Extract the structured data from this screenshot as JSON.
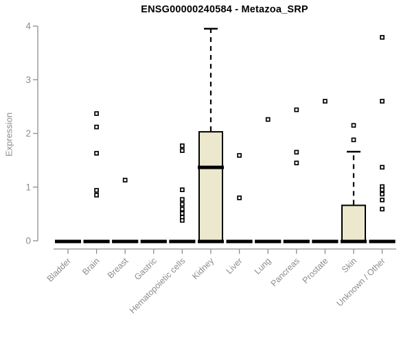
{
  "chart_data": {
    "type": "boxplot",
    "title": "ENSG00000240584 - Metazoa_SRP",
    "ylabel": "Expression",
    "xlabel": "",
    "ylim": [
      0,
      4
    ],
    "yticks": [
      0,
      1,
      2,
      3,
      4
    ],
    "grid": false,
    "legend": "none",
    "colors": {
      "box_fill": "#ece8cd",
      "box_border": "#000000",
      "median": "#000000",
      "whisker": "#000000",
      "outlier_fill": "#ffffff",
      "outlier_border": "#000000",
      "axis": "#8c8c8c",
      "tick_label": "#8c8c8c",
      "title": "#000000"
    },
    "categories": [
      "Bladder",
      "Brain",
      "Breast",
      "Gastric",
      "Hematopoietic cells",
      "Kidney",
      "Liver",
      "Lung",
      "Pancreas",
      "Prostate",
      "Skin",
      "Unknown / Other"
    ],
    "series": [
      {
        "category": "Bladder",
        "min": 0,
        "q1": 0,
        "median": 0,
        "q3": 0,
        "max": 0,
        "outliers": []
      },
      {
        "category": "Brain",
        "min": 0,
        "q1": 0,
        "median": 0,
        "q3": 0,
        "max": 0,
        "outliers": [
          2.37,
          2.12,
          1.63,
          0.94,
          0.85
        ]
      },
      {
        "category": "Breast",
        "min": 0,
        "q1": 0,
        "median": 0,
        "q3": 0,
        "max": 0,
        "outliers": [
          1.13
        ]
      },
      {
        "category": "Gastric",
        "min": 0,
        "q1": 0,
        "median": 0,
        "q3": 0,
        "max": 0,
        "outliers": []
      },
      {
        "category": "Hematopoietic cells",
        "min": 0,
        "q1": 0,
        "median": 0,
        "q3": 0,
        "max": 0,
        "outliers": [
          1.77,
          1.68,
          0.95,
          0.77,
          0.68,
          0.59,
          0.51,
          0.44,
          0.38
        ]
      },
      {
        "category": "Kidney",
        "min": 0,
        "q1": 0,
        "median": 1.38,
        "q3": 2.03,
        "max": 3.95,
        "outliers": []
      },
      {
        "category": "Liver",
        "min": 0,
        "q1": 0,
        "median": 0,
        "q3": 0,
        "max": 0,
        "outliers": [
          1.59,
          0.8
        ]
      },
      {
        "category": "Lung",
        "min": 0,
        "q1": 0,
        "median": 0,
        "q3": 0,
        "max": 0,
        "outliers": [
          2.26
        ]
      },
      {
        "category": "Pancreas",
        "min": 0,
        "q1": 0,
        "median": 0,
        "q3": 0,
        "max": 0,
        "outliers": [
          2.44,
          1.65,
          1.45
        ]
      },
      {
        "category": "Prostate",
        "min": 0,
        "q1": 0,
        "median": 0,
        "q3": 0,
        "max": 0,
        "outliers": [
          2.6
        ]
      },
      {
        "category": "Skin",
        "min": 0,
        "q1": 0,
        "median": 0,
        "q3": 0.66,
        "max": 1.66,
        "outliers": [
          2.15,
          1.88
        ]
      },
      {
        "category": "Unknown / Other",
        "min": 0,
        "q1": 0,
        "median": 0,
        "q3": 0,
        "max": 0,
        "outliers": [
          3.79,
          2.6,
          1.37,
          1.01,
          0.95,
          0.87,
          0.76,
          0.59
        ]
      }
    ]
  }
}
